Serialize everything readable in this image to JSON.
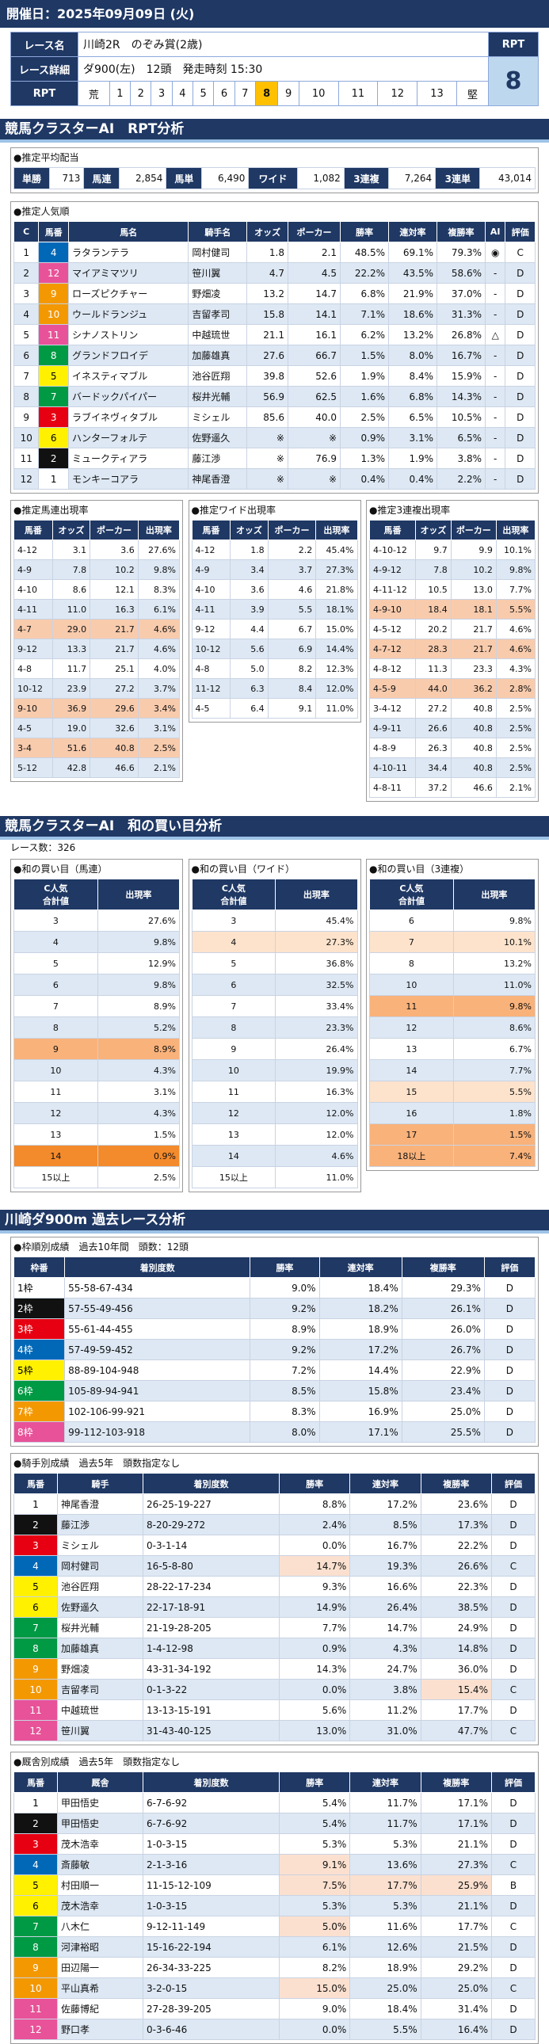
{
  "header": {
    "date": "開催日：2025年09月09日 (火)"
  },
  "race": {
    "name_label": "レース名",
    "name": "川崎2R　のぞみ賞(2歳)",
    "rpt_label": "RPT",
    "detail_label": "レース詳細",
    "detail": "ダ900(左)　12頭　発走時刻 15:30",
    "rpt_value": 8,
    "rpt_scale_label": "RPT",
    "rpt_scale": [
      "荒",
      1,
      2,
      3,
      4,
      5,
      6,
      7,
      8,
      9,
      10,
      11,
      12,
      13,
      "堅"
    ]
  },
  "rpt_analysis": {
    "title": "競馬クラスターAI　RPT分析",
    "payout": {
      "title": "●推定平均配当",
      "items": [
        {
          "label": "単勝",
          "value": "713"
        },
        {
          "label": "馬連",
          "value": "2,854"
        },
        {
          "label": "馬単",
          "value": "6,490"
        },
        {
          "label": "ワイド",
          "value": "1,082"
        },
        {
          "label": "3連複",
          "value": "7,264"
        },
        {
          "label": "3連単",
          "value": "43,014"
        }
      ]
    },
    "popularity": {
      "title": "●推定人気順",
      "columns": [
        "C",
        "馬番",
        "馬名",
        "騎手名",
        "オッズ",
        "ポーカー",
        "勝率",
        "連対率",
        "複勝率",
        "AI",
        "評価"
      ],
      "rows": [
        [
          "1",
          "4",
          "ラタランテラ",
          "岡村健司",
          "1.8",
          "2.1",
          "48.5%",
          "69.1%",
          "79.3%",
          "◉",
          "C"
        ],
        [
          "2",
          "12",
          "マイアミマツリ",
          "笹川翼",
          "4.7",
          "4.5",
          "22.2%",
          "43.5%",
          "58.6%",
          "-",
          "D"
        ],
        [
          "3",
          "9",
          "ローズピクチャー",
          "野畑凌",
          "13.2",
          "14.7",
          "6.8%",
          "21.9%",
          "37.0%",
          "-",
          "D"
        ],
        [
          "4",
          "10",
          "ウールドランジュ",
          "吉留孝司",
          "15.8",
          "14.1",
          "7.1%",
          "18.6%",
          "31.3%",
          "-",
          "D"
        ],
        [
          "5",
          "11",
          "シナノストリン",
          "中越琉世",
          "21.1",
          "16.1",
          "6.2%",
          "13.2%",
          "26.8%",
          "△",
          "D"
        ],
        [
          "6",
          "8",
          "グランドフロイデ",
          "加藤雄真",
          "27.6",
          "66.7",
          "1.5%",
          "8.0%",
          "16.7%",
          "-",
          "D"
        ],
        [
          "7",
          "5",
          "イネスティマブル",
          "池谷匠翔",
          "39.8",
          "52.6",
          "1.9%",
          "8.4%",
          "15.9%",
          "-",
          "D"
        ],
        [
          "8",
          "7",
          "バードックパイパー",
          "桜井光輔",
          "56.9",
          "62.5",
          "1.6%",
          "6.8%",
          "14.3%",
          "-",
          "D"
        ],
        [
          "9",
          "3",
          "ラブイネヴィタブル",
          "ミシェル",
          "85.6",
          "40.0",
          "2.5%",
          "6.5%",
          "10.5%",
          "-",
          "D"
        ],
        [
          "10",
          "6",
          "ハンターフォルテ",
          "佐野遥久",
          "※",
          "※",
          "0.9%",
          "3.1%",
          "6.5%",
          "-",
          "D"
        ],
        [
          "11",
          "2",
          "ミュークティアラ",
          "藤江渉",
          "※",
          "76.9",
          "1.3%",
          "1.9%",
          "3.8%",
          "-",
          "D"
        ],
        [
          "12",
          "1",
          "モンキーコアラ",
          "神尾香澄",
          "※",
          "※",
          "0.4%",
          "0.4%",
          "2.2%",
          "-",
          "D"
        ]
      ]
    },
    "combos": [
      {
        "title": "●推定馬連出現率",
        "columns": [
          "馬番",
          "オッズ",
          "ポーカー",
          "出現率"
        ],
        "rows": [
          [
            "4-12",
            "3.1",
            "3.6",
            "27.6%"
          ],
          [
            "4-9",
            "7.8",
            "10.2",
            "9.8%"
          ],
          [
            "4-10",
            "8.6",
            "12.1",
            "8.3%"
          ],
          [
            "4-11",
            "11.0",
            "16.3",
            "6.1%"
          ],
          [
            "4-7",
            "29.0",
            "21.7",
            "4.6%"
          ],
          [
            "9-12",
            "13.3",
            "21.7",
            "4.6%"
          ],
          [
            "4-8",
            "11.7",
            "25.1",
            "4.0%"
          ],
          [
            "10-12",
            "23.9",
            "27.2",
            "3.7%"
          ],
          [
            "9-10",
            "36.9",
            "29.6",
            "3.4%"
          ],
          [
            "4-5",
            "19.0",
            "32.6",
            "3.1%"
          ],
          [
            "3-4",
            "51.6",
            "40.8",
            "2.5%"
          ],
          [
            "5-12",
            "42.8",
            "46.6",
            "2.1%"
          ]
        ]
      },
      {
        "title": "●推定ワイド出現率",
        "columns": [
          "馬番",
          "オッズ",
          "ポーカー",
          "出現率"
        ],
        "rows": [
          [
            "4-12",
            "1.8",
            "2.2",
            "45.4%"
          ],
          [
            "4-9",
            "3.4",
            "3.7",
            "27.3%"
          ],
          [
            "4-10",
            "3.6",
            "4.6",
            "21.8%"
          ],
          [
            "4-11",
            "3.9",
            "5.5",
            "18.1%"
          ],
          [
            "9-12",
            "4.4",
            "6.7",
            "15.0%"
          ],
          [
            "10-12",
            "5.6",
            "6.9",
            "14.4%"
          ],
          [
            "4-8",
            "5.0",
            "8.2",
            "12.3%"
          ],
          [
            "11-12",
            "6.3",
            "8.4",
            "12.0%"
          ],
          [
            "4-5",
            "6.4",
            "9.1",
            "11.0%"
          ]
        ]
      },
      {
        "title": "●推定3連複出現率",
        "columns": [
          "馬番",
          "オッズ",
          "ポーカー",
          "出現率"
        ],
        "rows": [
          [
            "4-10-12",
            "9.7",
            "9.9",
            "10.1%"
          ],
          [
            "4-9-12",
            "7.8",
            "10.2",
            "9.8%"
          ],
          [
            "4-11-12",
            "10.5",
            "13.0",
            "7.7%"
          ],
          [
            "4-9-10",
            "18.4",
            "18.1",
            "5.5%"
          ],
          [
            "4-5-12",
            "20.2",
            "21.7",
            "4.6%"
          ],
          [
            "4-7-12",
            "28.3",
            "21.7",
            "4.6%"
          ],
          [
            "4-8-12",
            "11.3",
            "23.3",
            "4.3%"
          ],
          [
            "4-5-9",
            "44.0",
            "36.2",
            "2.8%"
          ],
          [
            "3-4-12",
            "27.2",
            "40.8",
            "2.5%"
          ],
          [
            "4-9-11",
            "26.6",
            "40.8",
            "2.5%"
          ],
          [
            "4-8-9",
            "26.3",
            "40.8",
            "2.5%"
          ],
          [
            "4-10-11",
            "34.4",
            "40.8",
            "2.5%"
          ],
          [
            "4-8-11",
            "37.2",
            "46.6",
            "2.1%"
          ]
        ]
      }
    ]
  },
  "sum_analysis": {
    "title": "競馬クラスターAI　和の買い目分析",
    "races": "レース数：326",
    "tables": [
      {
        "title": "●和の買い目（馬連）",
        "columns": [
          "C人気\n合計値",
          "出現率"
        ],
        "rows": [
          [
            "3",
            "27.6%"
          ],
          [
            "4",
            "9.8%"
          ],
          [
            "5",
            "12.9%"
          ],
          [
            "6",
            "9.8%"
          ],
          [
            "7",
            "8.9%"
          ],
          [
            "8",
            "5.2%"
          ],
          [
            "9",
            "8.9%"
          ],
          [
            "10",
            "4.3%"
          ],
          [
            "11",
            "3.1%"
          ],
          [
            "12",
            "4.3%"
          ],
          [
            "13",
            "1.5%"
          ],
          [
            "14",
            "0.9%"
          ],
          [
            "15以上",
            "2.5%"
          ]
        ]
      },
      {
        "title": "●和の買い目（ワイド）",
        "columns": [
          "C人気\n合計値",
          "出現率"
        ],
        "rows": [
          [
            "3",
            "45.4%"
          ],
          [
            "4",
            "27.3%"
          ],
          [
            "5",
            "36.8%"
          ],
          [
            "6",
            "32.5%"
          ],
          [
            "7",
            "33.4%"
          ],
          [
            "8",
            "23.3%"
          ],
          [
            "9",
            "26.4%"
          ],
          [
            "10",
            "19.9%"
          ],
          [
            "11",
            "16.3%"
          ],
          [
            "12",
            "12.0%"
          ],
          [
            "13",
            "12.0%"
          ],
          [
            "14",
            "4.6%"
          ],
          [
            "15以上",
            "11.0%"
          ]
        ]
      },
      {
        "title": "●和の買い目（3連複）",
        "columns": [
          "C人気\n合計値",
          "出現率"
        ],
        "rows": [
          [
            "6",
            "9.8%"
          ],
          [
            "7",
            "10.1%"
          ],
          [
            "8",
            "13.2%"
          ],
          [
            "10",
            "11.0%"
          ],
          [
            "11",
            "9.8%"
          ],
          [
            "12",
            "8.6%"
          ],
          [
            "13",
            "6.7%"
          ],
          [
            "14",
            "7.7%"
          ],
          [
            "15",
            "5.5%"
          ],
          [
            "16",
            "1.8%"
          ],
          [
            "17",
            "1.5%"
          ],
          [
            "18以上",
            "7.4%"
          ]
        ]
      }
    ]
  },
  "course_analysis": {
    "title": "川崎ダ900m 過去レース分析",
    "tables": [
      {
        "title": "●枠順別成績　過去10年間　頭数：12頭",
        "columns": [
          "枠番",
          "着別度数",
          "勝率",
          "連対率",
          "複勝率",
          "評価"
        ],
        "rows": [
          [
            "1枠",
            "55-58-67-434",
            "9.0%",
            "18.4%",
            "29.3%",
            "D"
          ],
          [
            "2枠",
            "57-55-49-456",
            "9.2%",
            "18.2%",
            "26.1%",
            "D"
          ],
          [
            "3枠",
            "55-61-44-455",
            "8.9%",
            "18.9%",
            "26.0%",
            "D"
          ],
          [
            "4枠",
            "57-49-59-452",
            "9.2%",
            "17.2%",
            "26.7%",
            "D"
          ],
          [
            "5枠",
            "88-89-104-948",
            "7.2%",
            "14.4%",
            "22.9%",
            "D"
          ],
          [
            "6枠",
            "105-89-94-941",
            "8.5%",
            "15.8%",
            "23.4%",
            "D"
          ],
          [
            "7枠",
            "102-106-99-921",
            "8.3%",
            "16.9%",
            "25.0%",
            "D"
          ],
          [
            "8枠",
            "99-112-103-918",
            "8.0%",
            "17.1%",
            "25.5%",
            "D"
          ]
        ]
      },
      {
        "title": "●騎手別成績　過去5年　頭数指定なし",
        "columns": [
          "馬番",
          "騎手",
          "着別度数",
          "勝率",
          "連対率",
          "複勝率",
          "評価"
        ],
        "rows": [
          [
            "1",
            "神尾香澄",
            "26-25-19-227",
            "8.8%",
            "17.2%",
            "23.6%",
            "D"
          ],
          [
            "2",
            "藤江渉",
            "8-20-29-272",
            "2.4%",
            "8.5%",
            "17.3%",
            "D"
          ],
          [
            "3",
            "ミシェル",
            "0-3-1-14",
            "0.0%",
            "16.7%",
            "22.2%",
            "D"
          ],
          [
            "4",
            "岡村健司",
            "16-5-8-80",
            "14.7%",
            "19.3%",
            "26.6%",
            "C"
          ],
          [
            "5",
            "池谷匠翔",
            "28-22-17-234",
            "9.3%",
            "16.6%",
            "22.3%",
            "D"
          ],
          [
            "6",
            "佐野遥久",
            "22-17-18-91",
            "14.9%",
            "26.4%",
            "38.5%",
            "D"
          ],
          [
            "7",
            "桜井光輔",
            "21-19-28-205",
            "7.7%",
            "14.7%",
            "24.9%",
            "D"
          ],
          [
            "8",
            "加藤雄真",
            "1-4-12-98",
            "0.9%",
            "4.3%",
            "14.8%",
            "D"
          ],
          [
            "9",
            "野畑凌",
            "43-31-34-192",
            "14.3%",
            "24.7%",
            "36.0%",
            "D"
          ],
          [
            "10",
            "吉留孝司",
            "0-1-3-22",
            "0.0%",
            "3.8%",
            "15.4%",
            "C"
          ],
          [
            "11",
            "中越琉世",
            "13-13-15-191",
            "5.6%",
            "11.2%",
            "17.7%",
            "D"
          ],
          [
            "12",
            "笹川翼",
            "31-43-40-125",
            "13.0%",
            "31.0%",
            "47.7%",
            "C"
          ]
        ]
      },
      {
        "title": "●厩舎別成績　過去5年　頭数指定なし",
        "columns": [
          "馬番",
          "厩舎",
          "着別度数",
          "勝率",
          "連対率",
          "複勝率",
          "評価"
        ],
        "rows": [
          [
            "1",
            "甲田悟史",
            "6-7-6-92",
            "5.4%",
            "11.7%",
            "17.1%",
            "D"
          ],
          [
            "2",
            "甲田悟史",
            "6-7-6-92",
            "5.4%",
            "11.7%",
            "17.1%",
            "D"
          ],
          [
            "3",
            "茂木浩幸",
            "1-0-3-15",
            "5.3%",
            "5.3%",
            "21.1%",
            "D"
          ],
          [
            "4",
            "斎藤敏",
            "2-1-3-16",
            "9.1%",
            "13.6%",
            "27.3%",
            "C"
          ],
          [
            "5",
            "村田順一",
            "11-15-12-109",
            "7.5%",
            "17.7%",
            "25.9%",
            "B"
          ],
          [
            "6",
            "茂木浩幸",
            "1-0-3-15",
            "5.3%",
            "5.3%",
            "21.1%",
            "D"
          ],
          [
            "7",
            "八木仁",
            "9-12-11-149",
            "5.0%",
            "11.6%",
            "17.7%",
            "C"
          ],
          [
            "8",
            "河津裕昭",
            "15-16-22-194",
            "6.1%",
            "12.6%",
            "21.5%",
            "D"
          ],
          [
            "9",
            "田辺陽一",
            "26-34-33-225",
            "8.2%",
            "18.9%",
            "29.2%",
            "D"
          ],
          [
            "10",
            "平山真希",
            "3-2-0-15",
            "15.0%",
            "25.0%",
            "25.0%",
            "C"
          ],
          [
            "11",
            "佐藤博紀",
            "27-28-39-205",
            "9.0%",
            "18.4%",
            "31.4%",
            "D"
          ],
          [
            "12",
            "野口孝",
            "0-3-6-46",
            "0.0%",
            "5.5%",
            "16.4%",
            "D"
          ]
        ]
      }
    ]
  }
}
